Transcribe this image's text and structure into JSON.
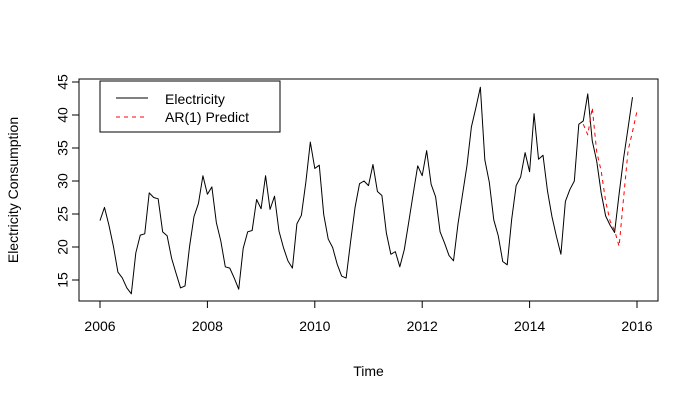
{
  "chart_data": {
    "type": "line",
    "xlabel": "Time",
    "ylabel": "Electricity Consumption",
    "xlim": [
      2006,
      2016
    ],
    "ylim": [
      12,
      45
    ],
    "x_ticks": [
      2006,
      2008,
      2010,
      2012,
      2014,
      2016
    ],
    "y_ticks": [
      15,
      20,
      25,
      30,
      35,
      40,
      45
    ],
    "legend_position": "top-left",
    "series": [
      {
        "name": "Electricity",
        "color": "#000000",
        "style": "solid",
        "x_start": 2006.0,
        "step": 0.08333,
        "values": [
          24.0,
          26.0,
          23.3,
          20.1,
          16.2,
          15.3,
          13.8,
          12.9,
          19.1,
          21.8,
          22.0,
          28.2,
          27.5,
          27.3,
          22.3,
          21.7,
          18.3,
          16.0,
          13.8,
          14.1,
          20.0,
          24.6,
          26.6,
          30.8,
          28.0,
          29.1,
          23.7,
          20.9,
          17.0,
          16.8,
          15.3,
          13.6,
          19.8,
          22.3,
          22.5,
          27.2,
          25.8,
          30.8,
          25.7,
          27.7,
          22.4,
          19.9,
          17.9,
          16.8,
          23.5,
          24.8,
          29.8,
          35.9,
          31.9,
          32.4,
          24.9,
          21.2,
          19.9,
          17.4,
          15.6,
          15.3,
          20.8,
          26.0,
          29.6,
          30.0,
          29.3,
          32.5,
          28.4,
          27.8,
          22.1,
          18.9,
          19.3,
          17.0,
          19.6,
          23.8,
          28.1,
          32.3,
          30.8,
          34.6,
          29.5,
          27.6,
          22.3,
          20.6,
          18.7,
          17.9,
          23.5,
          27.9,
          32.3,
          38.2,
          41.1,
          44.2,
          33.2,
          29.8,
          24.1,
          21.7,
          17.8,
          17.3,
          24.2,
          29.3,
          30.6,
          34.3,
          31.4,
          40.2,
          33.3,
          33.9,
          28.5,
          24.6,
          21.6,
          18.9,
          26.9,
          28.7,
          30.0,
          38.6,
          39.1,
          43.2,
          36.1,
          33.0,
          28.2,
          24.7,
          23.3,
          22.2,
          28.0,
          33.4,
          38.0,
          42.7
        ]
      },
      {
        "name": "AR(1) Predict",
        "color": "#ff0000",
        "style": "dashed",
        "x_start": 2015.0,
        "step": 0.08333,
        "values": [
          38.6,
          37.0,
          41.1,
          34.4,
          31.5,
          26.9,
          23.9,
          22.5,
          20.1,
          27.4,
          34.6,
          37.5,
          40.6
        ]
      }
    ]
  }
}
